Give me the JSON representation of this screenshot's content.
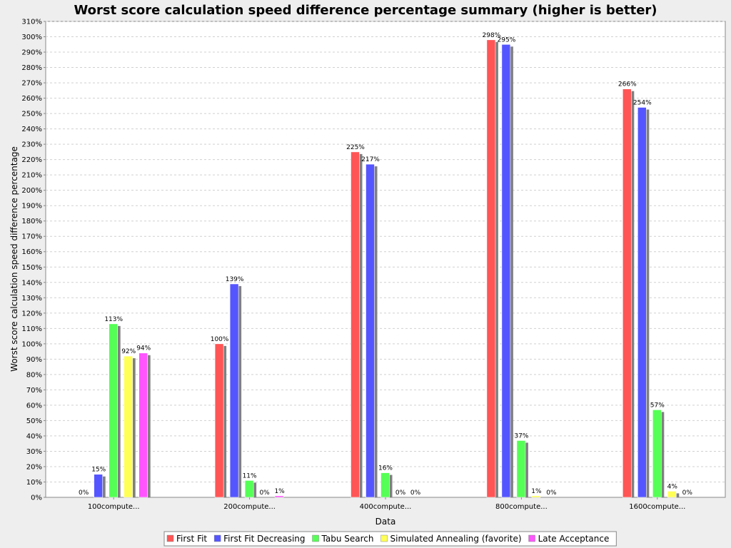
{
  "chart_data": {
    "type": "bar",
    "title": "Worst score calculation speed difference percentage summary (higher is better)",
    "xlabel": "Data",
    "ylabel": "Worst score calculation speed difference percentage",
    "ylim": [
      0,
      310
    ],
    "ytick_step": 10,
    "ytick_suffix": "%",
    "grid": true,
    "legend_position": "bottom",
    "categories": [
      "100compute...",
      "200compute...",
      "400compute...",
      "800compute...",
      "1600compute..."
    ],
    "series": [
      {
        "name": "First Fit",
        "color": "#ff5555",
        "values": [
          0,
          100,
          225,
          298,
          266
        ],
        "labels": [
          "",
          "100%",
          "225%",
          "298%",
          "266%"
        ]
      },
      {
        "name": "First Fit Decreasing",
        "color": "#5555ff",
        "values": [
          15,
          139,
          217,
          295,
          254
        ],
        "labels": [
          "15%",
          "139%",
          "217%",
          "295%",
          "254%"
        ]
      },
      {
        "name": "Tabu Search",
        "color": "#55ff55",
        "values": [
          113,
          11,
          16,
          37,
          57
        ],
        "labels": [
          "113%",
          "11%",
          "16%",
          "37%",
          "57%"
        ]
      },
      {
        "name": "Simulated Annealing (favorite)",
        "color": "#ffff55",
        "values": [
          92,
          0,
          0,
          1,
          4
        ],
        "labels": [
          "92%",
          "0%",
          "0%",
          "1%",
          "4%"
        ]
      },
      {
        "name": "Late Acceptance",
        "color": "#ff55ff",
        "values": [
          94,
          1,
          0,
          0,
          0
        ],
        "labels": [
          "94%",
          "1%",
          "0%",
          "0%",
          "0%"
        ]
      }
    ],
    "extra_labels": [
      {
        "category_index": 0,
        "series_index": 0,
        "text": "0%"
      }
    ]
  }
}
